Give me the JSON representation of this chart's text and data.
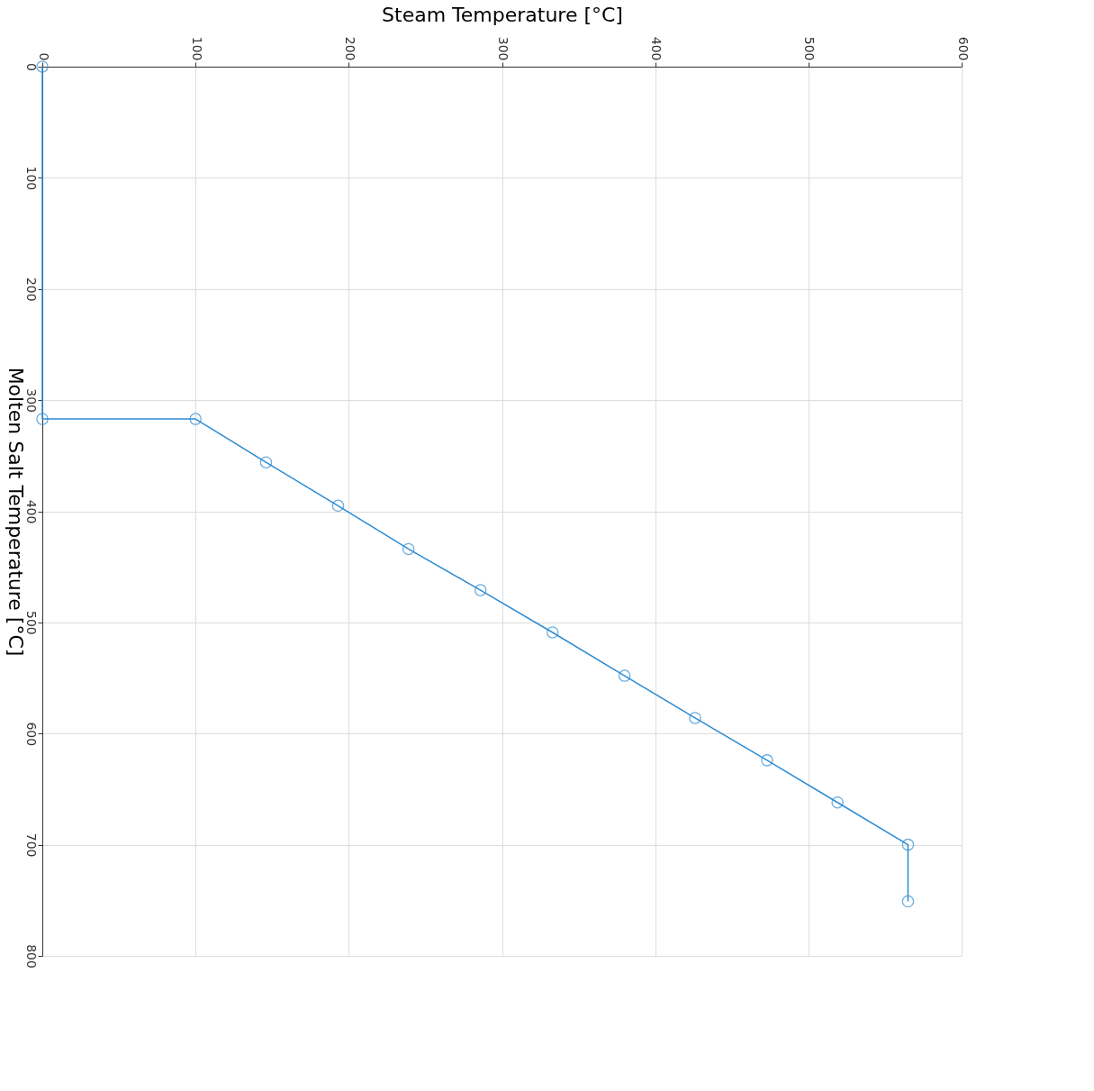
{
  "chart_data": {
    "type": "line",
    "xlabel": "Steam Temperature [°C]",
    "ylabel": "Molten Salt Temperature [°C]",
    "x": [
      0,
      0,
      100,
      146,
      193,
      239,
      286,
      333,
      380,
      426,
      473,
      519,
      565,
      565
    ],
    "series": [
      {
        "color": "#2c8bd3",
        "values": [
          0,
          317,
          317,
          356,
          395,
          434,
          471,
          509,
          548,
          586,
          624,
          662,
          700,
          751
        ]
      }
    ],
    "xlim": [
      0,
      600
    ],
    "xticks": [
      0,
      100,
      200,
      300,
      400,
      500,
      600
    ],
    "ylim": [
      800,
      0
    ],
    "yticks": [
      0,
      100,
      200,
      300,
      400,
      500,
      600,
      700,
      800
    ],
    "grid": true,
    "marker": "circle",
    "line_style": "solid"
  }
}
